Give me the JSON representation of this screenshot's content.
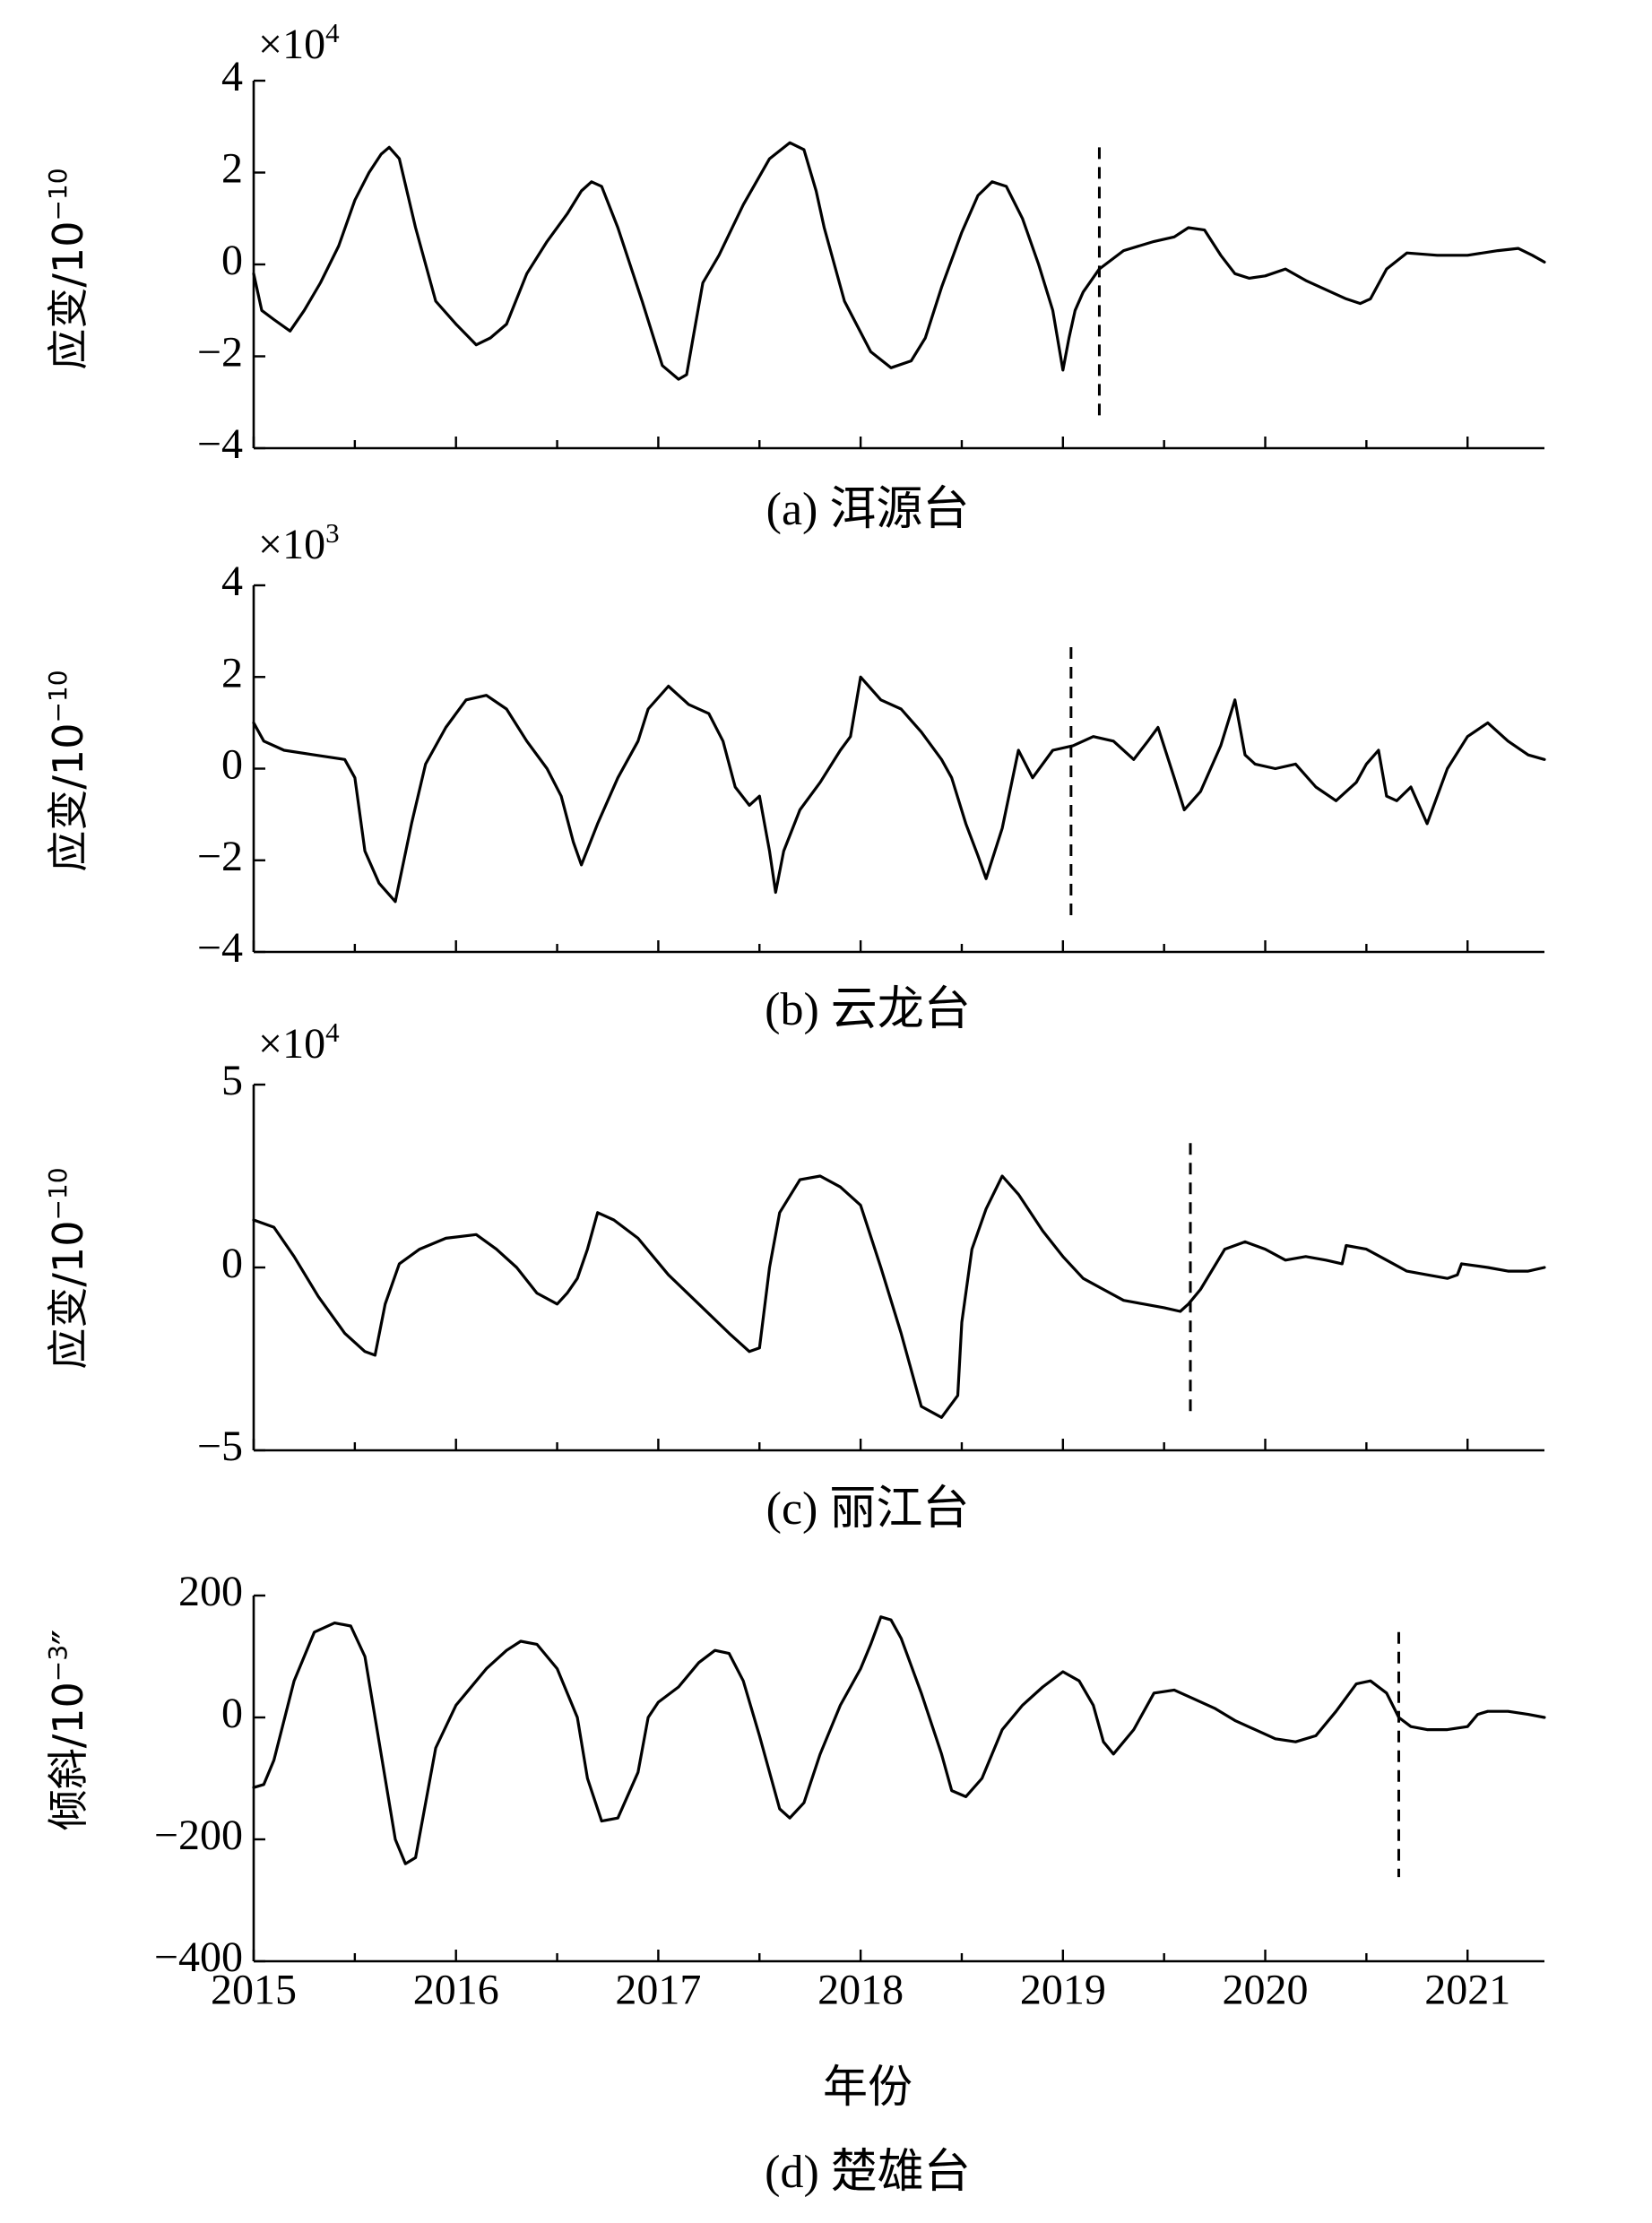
{
  "figure": {
    "xlabel": "年份",
    "x_ticks": [
      2015,
      2016,
      2017,
      2018,
      2019,
      2020,
      2021
    ],
    "x_tick_labels": [
      "2015",
      "2016",
      "2017",
      "2018",
      "2019",
      "2020",
      "2021"
    ]
  },
  "chart_data": [
    {
      "type": "line",
      "caption": "(a) 洱源台",
      "ylabel": {
        "base": "应变/10",
        "exponent": "−10"
      },
      "sci_multiplier": {
        "base": "×10",
        "exponent": "4"
      },
      "xlim": [
        2015,
        2021.38
      ],
      "ylim": [
        -4,
        4
      ],
      "y_ticks": [
        -4,
        -2,
        0,
        2,
        4
      ],
      "y_tick_labels": [
        "−4",
        "−2",
        "0",
        "2",
        "4"
      ],
      "marker_x": 2019.18,
      "marker_y_range": [
        -3.3,
        2.55
      ],
      "series": [
        {
          "x": [
            2015.0,
            2015.04,
            2015.1,
            2015.18,
            2015.25,
            2015.33,
            2015.42,
            2015.5,
            2015.57,
            2015.63,
            2015.67,
            2015.72,
            2015.8,
            2015.9,
            2016.0,
            2016.1,
            2016.17,
            2016.25,
            2016.35,
            2016.45,
            2016.55,
            2016.62,
            2016.67,
            2016.72,
            2016.8,
            2016.92,
            2017.02,
            2017.1,
            2017.14,
            2017.18,
            2017.22,
            2017.3,
            2017.42,
            2017.55,
            2017.65,
            2017.72,
            2017.78,
            2017.82,
            2017.92,
            2018.05,
            2018.15,
            2018.25,
            2018.32,
            2018.4,
            2018.5,
            2018.58,
            2018.65,
            2018.72,
            2018.8,
            2018.88,
            2018.95,
            2019.0,
            2019.03,
            2019.06,
            2019.1,
            2019.18,
            2019.3,
            2019.45,
            2019.55,
            2019.62,
            2019.7,
            2019.78,
            2019.85,
            2019.92,
            2020.0,
            2020.1,
            2020.2,
            2020.3,
            2020.4,
            2020.47,
            2020.52,
            2020.6,
            2020.7,
            2020.85,
            2021.0,
            2021.15,
            2021.25,
            2021.32,
            2021.38
          ],
          "y": [
            -0.2,
            -1.0,
            -1.2,
            -1.45,
            -1.0,
            -0.4,
            0.4,
            1.4,
            2.0,
            2.4,
            2.55,
            2.3,
            0.8,
            -0.8,
            -1.3,
            -1.75,
            -1.6,
            -1.3,
            -0.2,
            0.5,
            1.1,
            1.6,
            1.8,
            1.7,
            0.8,
            -0.8,
            -2.2,
            -2.5,
            -2.4,
            -1.4,
            -0.4,
            0.2,
            1.3,
            2.3,
            2.65,
            2.5,
            1.6,
            0.8,
            -0.8,
            -1.9,
            -2.25,
            -2.1,
            -1.6,
            -0.5,
            0.7,
            1.5,
            1.8,
            1.7,
            1.0,
            0.0,
            -1.0,
            -2.3,
            -1.6,
            -1.0,
            -0.6,
            -0.1,
            0.3,
            0.5,
            0.6,
            0.8,
            0.75,
            0.2,
            -0.2,
            -0.3,
            -0.25,
            -0.1,
            -0.35,
            -0.55,
            -0.75,
            -0.85,
            -0.75,
            -0.1,
            0.25,
            0.2,
            0.2,
            0.3,
            0.35,
            0.2,
            0.05
          ]
        }
      ]
    },
    {
      "type": "line",
      "caption": "(b) 云龙台",
      "ylabel": {
        "base": "应变/10",
        "exponent": "−10"
      },
      "sci_multiplier": {
        "base": "×10",
        "exponent": "3"
      },
      "xlim": [
        2015,
        2021.38
      ],
      "ylim": [
        -4,
        4
      ],
      "y_ticks": [
        -4,
        -2,
        0,
        2,
        4
      ],
      "y_tick_labels": [
        "−4",
        "−2",
        "0",
        "2",
        "4"
      ],
      "marker_x": 2019.04,
      "marker_y_range": [
        -3.2,
        2.65
      ],
      "series": [
        {
          "x": [
            2015.0,
            2015.05,
            2015.15,
            2015.3,
            2015.45,
            2015.5,
            2015.55,
            2015.62,
            2015.7,
            2015.78,
            2015.85,
            2015.95,
            2016.05,
            2016.15,
            2016.25,
            2016.35,
            2016.45,
            2016.52,
            2016.58,
            2016.62,
            2016.7,
            2016.8,
            2016.9,
            2016.95,
            2017.05,
            2017.15,
            2017.25,
            2017.32,
            2017.38,
            2017.45,
            2017.5,
            2017.55,
            2017.58,
            2017.62,
            2017.7,
            2017.8,
            2017.9,
            2017.95,
            2018.0,
            2018.1,
            2018.2,
            2018.3,
            2018.4,
            2018.45,
            2018.52,
            2018.58,
            2018.62,
            2018.7,
            2018.78,
            2018.85,
            2018.95,
            2019.05,
            2019.15,
            2019.25,
            2019.35,
            2019.42,
            2019.47,
            2019.55,
            2019.6,
            2019.68,
            2019.78,
            2019.85,
            2019.9,
            2019.95,
            2020.05,
            2020.15,
            2020.25,
            2020.35,
            2020.45,
            2020.5,
            2020.56,
            2020.6,
            2020.65,
            2020.72,
            2020.8,
            2020.9,
            2021.0,
            2021.1,
            2021.2,
            2021.3,
            2021.38
          ],
          "y": [
            1.0,
            0.6,
            0.4,
            0.3,
            0.2,
            -0.2,
            -1.8,
            -2.5,
            -2.9,
            -1.2,
            0.1,
            0.9,
            1.5,
            1.6,
            1.3,
            0.6,
            0.0,
            -0.6,
            -1.6,
            -2.1,
            -1.2,
            -0.2,
            0.6,
            1.3,
            1.8,
            1.4,
            1.2,
            0.6,
            -0.4,
            -0.8,
            -0.6,
            -1.8,
            -2.7,
            -1.8,
            -0.9,
            -0.3,
            0.4,
            0.7,
            2.0,
            1.5,
            1.3,
            0.8,
            0.2,
            -0.2,
            -1.2,
            -1.9,
            -2.4,
            -1.3,
            0.4,
            -0.2,
            0.4,
            0.5,
            0.7,
            0.6,
            0.2,
            0.6,
            0.9,
            -0.2,
            -0.9,
            -0.5,
            0.5,
            1.5,
            0.3,
            0.1,
            0.0,
            0.1,
            -0.4,
            -0.7,
            -0.3,
            0.1,
            0.4,
            -0.6,
            -0.7,
            -0.4,
            -1.2,
            0.0,
            0.7,
            1.0,
            0.6,
            0.3,
            0.2
          ]
        }
      ]
    },
    {
      "type": "line",
      "caption": "(c) 丽江台",
      "ylabel": {
        "base": "应变/10",
        "exponent": "−10"
      },
      "sci_multiplier": {
        "base": "×10",
        "exponent": "4"
      },
      "xlim": [
        2015,
        2021.38
      ],
      "ylim": [
        -5,
        5
      ],
      "y_ticks": [
        -5,
        0,
        5
      ],
      "y_tick_labels": [
        "−5",
        "0",
        "5"
      ],
      "marker_x": 2019.63,
      "marker_y_range": [
        -4.1,
        3.4
      ],
      "series": [
        {
          "x": [
            2015.0,
            2015.1,
            2015.2,
            2015.32,
            2015.45,
            2015.55,
            2015.6,
            2015.65,
            2015.72,
            2015.82,
            2015.95,
            2016.1,
            2016.2,
            2016.3,
            2016.4,
            2016.5,
            2016.55,
            2016.6,
            2016.65,
            2016.7,
            2016.78,
            2016.9,
            2017.05,
            2017.2,
            2017.35,
            2017.45,
            2017.5,
            2017.55,
            2017.6,
            2017.7,
            2017.8,
            2017.9,
            2018.0,
            2018.1,
            2018.2,
            2018.3,
            2018.4,
            2018.48,
            2018.5,
            2018.55,
            2018.62,
            2018.7,
            2018.78,
            2018.9,
            2019.0,
            2019.1,
            2019.2,
            2019.3,
            2019.4,
            2019.5,
            2019.58,
            2019.62,
            2019.68,
            2019.8,
            2019.9,
            2020.0,
            2020.1,
            2020.2,
            2020.3,
            2020.38,
            2020.4,
            2020.5,
            2020.6,
            2020.7,
            2020.8,
            2020.9,
            2020.95,
            2020.97,
            2021.1,
            2021.2,
            2021.3,
            2021.38
          ],
          "y": [
            1.3,
            1.1,
            0.3,
            -0.8,
            -1.8,
            -2.3,
            -2.4,
            -1.0,
            0.1,
            0.5,
            0.8,
            0.9,
            0.5,
            0.0,
            -0.7,
            -1.0,
            -0.7,
            -0.3,
            0.5,
            1.5,
            1.3,
            0.8,
            -0.2,
            -1.0,
            -1.8,
            -2.3,
            -2.2,
            0.0,
            1.5,
            2.4,
            2.5,
            2.2,
            1.7,
            0.0,
            -1.8,
            -3.8,
            -4.1,
            -3.5,
            -1.5,
            0.5,
            1.6,
            2.5,
            2.0,
            1.0,
            0.3,
            -0.3,
            -0.6,
            -0.9,
            -1.0,
            -1.1,
            -1.2,
            -1.0,
            -0.6,
            0.5,
            0.7,
            0.5,
            0.2,
            0.3,
            0.2,
            0.1,
            0.6,
            0.5,
            0.2,
            -0.1,
            -0.2,
            -0.3,
            -0.2,
            0.1,
            0.0,
            -0.1,
            -0.1,
            0.0
          ]
        }
      ]
    },
    {
      "type": "line",
      "caption": "(d) 楚雄台",
      "ylabel": {
        "base": "倾斜/10",
        "exponent": "−3",
        "suffix": "″"
      },
      "xlim": [
        2015,
        2021.38
      ],
      "ylim": [
        -400,
        200
      ],
      "y_ticks": [
        -400,
        -200,
        0,
        200
      ],
      "y_tick_labels": [
        "−400",
        "−200",
        "0",
        "200"
      ],
      "marker_x": 2020.66,
      "marker_y_range": [
        -262,
        140
      ],
      "series": [
        {
          "x": [
            2015.0,
            2015.05,
            2015.1,
            2015.2,
            2015.3,
            2015.4,
            2015.48,
            2015.55,
            2015.6,
            2015.7,
            2015.75,
            2015.8,
            2015.9,
            2016.0,
            2016.05,
            2016.15,
            2016.25,
            2016.32,
            2016.4,
            2016.5,
            2016.6,
            2016.65,
            2016.72,
            2016.8,
            2016.9,
            2016.95,
            2017.0,
            2017.1,
            2017.2,
            2017.28,
            2017.35,
            2017.42,
            2017.5,
            2017.6,
            2017.65,
            2017.72,
            2017.8,
            2017.9,
            2018.0,
            2018.05,
            2018.1,
            2018.15,
            2018.2,
            2018.3,
            2018.4,
            2018.45,
            2018.52,
            2018.6,
            2018.7,
            2018.8,
            2018.9,
            2019.0,
            2019.08,
            2019.15,
            2019.2,
            2019.25,
            2019.35,
            2019.45,
            2019.55,
            2019.65,
            2019.75,
            2019.85,
            2019.95,
            2020.05,
            2020.15,
            2020.25,
            2020.35,
            2020.45,
            2020.52,
            2020.6,
            2020.66,
            2020.72,
            2020.8,
            2020.9,
            2021.0,
            2021.05,
            2021.1,
            2021.2,
            2021.3,
            2021.38
          ],
          "y": [
            -115,
            -110,
            -70,
            60,
            140,
            155,
            150,
            100,
            0,
            -200,
            -240,
            -230,
            -50,
            20,
            40,
            80,
            110,
            125,
            120,
            80,
            0,
            -100,
            -170,
            -165,
            -90,
            0,
            25,
            50,
            90,
            110,
            105,
            60,
            -30,
            -150,
            -165,
            -140,
            -60,
            20,
            80,
            120,
            165,
            160,
            130,
            40,
            -60,
            -120,
            -130,
            -100,
            -20,
            20,
            50,
            75,
            60,
            20,
            -40,
            -60,
            -20,
            40,
            45,
            30,
            15,
            -5,
            -20,
            -35,
            -40,
            -30,
            10,
            55,
            60,
            40,
            0,
            -15,
            -20,
            -20,
            -15,
            5,
            10,
            10,
            5,
            0
          ]
        }
      ]
    }
  ]
}
